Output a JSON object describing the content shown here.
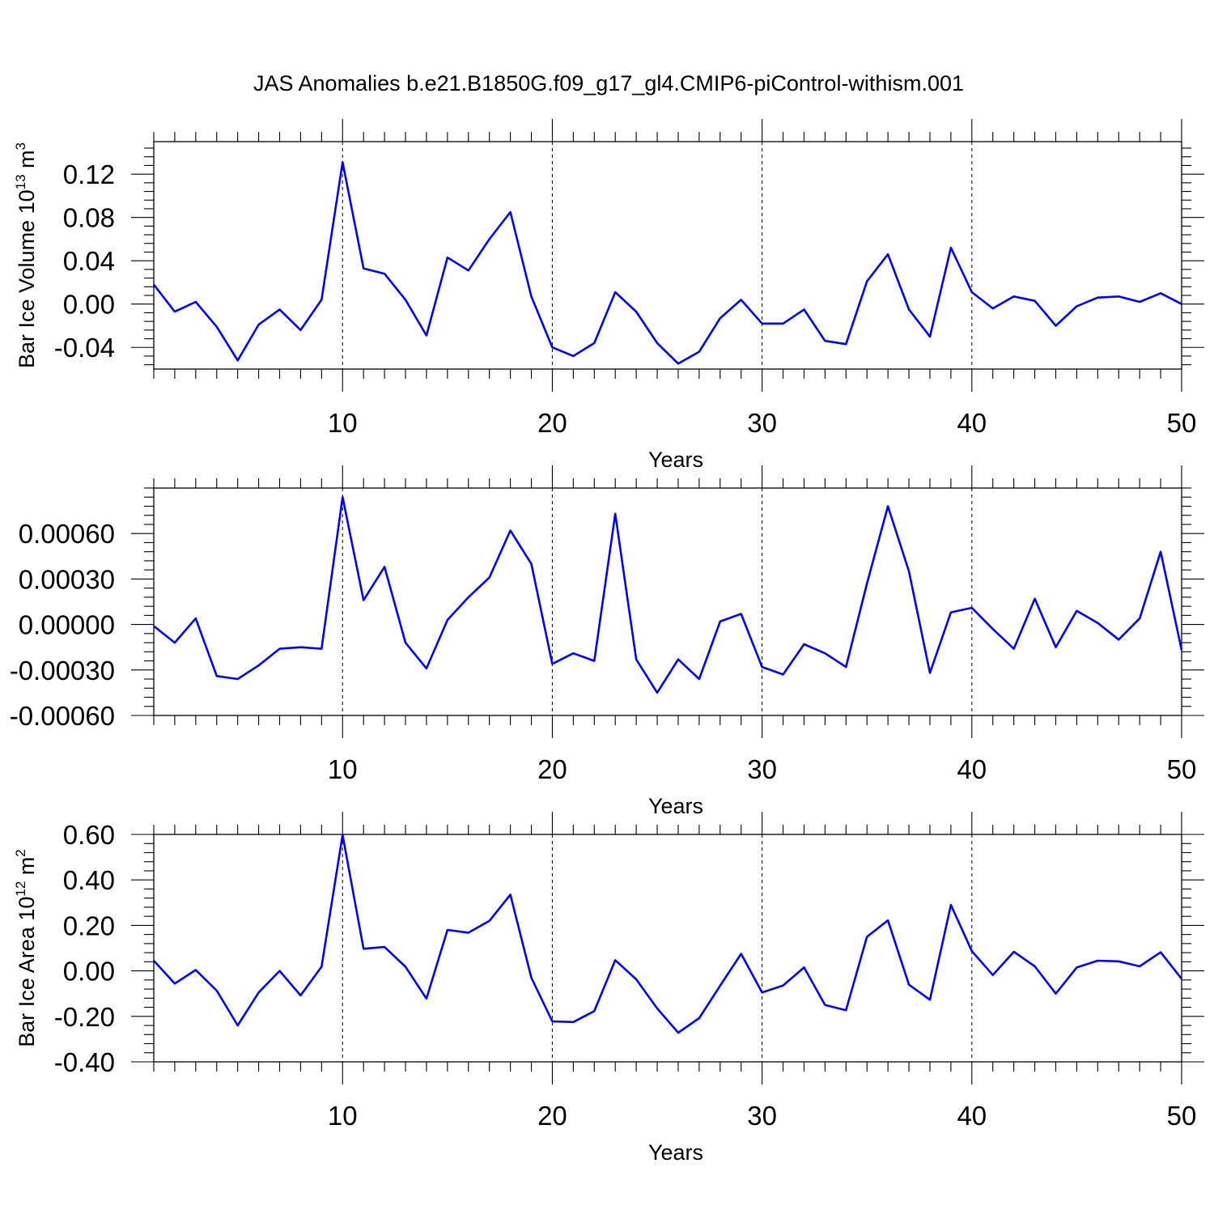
{
  "title": "JAS Anomalies b.e21.B1850G.f09_g17_gl4.CMIP6-piControl-withism.001",
  "colors": {
    "series": "#0000ff",
    "axes": "#000000",
    "background": "#ffffff"
  },
  "chart_data": [
    {
      "type": "line",
      "xlabel": "Years",
      "ylabel_parts": [
        "Bar Ice Volume 10",
        "13",
        " m",
        "3"
      ],
      "xlim": [
        1,
        50
      ],
      "ylim": [
        -0.06,
        0.15
      ],
      "xticks": [
        10,
        20,
        30,
        40,
        50
      ],
      "xtick_labels": [
        "10",
        "20",
        "30",
        "40",
        "50"
      ],
      "yticks": [
        -0.04,
        0.0,
        0.04,
        0.08,
        0.12
      ],
      "ytick_labels": [
        "-0.04",
        "0.00",
        "0.04",
        "0.08",
        "0.12"
      ],
      "grid": "vertical dashed at major x ticks",
      "x": [
        1,
        2,
        3,
        4,
        5,
        6,
        7,
        8,
        9,
        10,
        11,
        12,
        13,
        14,
        15,
        16,
        17,
        18,
        19,
        20,
        21,
        22,
        23,
        24,
        25,
        26,
        27,
        28,
        29,
        30,
        31,
        32,
        33,
        34,
        35,
        36,
        37,
        38,
        39,
        40,
        41,
        42,
        43,
        44,
        45,
        46,
        47,
        48,
        49,
        50
      ],
      "y": [
        0.018,
        -0.007,
        0.002,
        -0.021,
        -0.052,
        -0.019,
        -0.005,
        -0.024,
        0.004,
        0.131,
        0.033,
        0.028,
        0.004,
        -0.029,
        0.043,
        0.031,
        0.06,
        0.085,
        0.007,
        -0.04,
        -0.048,
        -0.036,
        0.011,
        -0.007,
        -0.036,
        -0.055,
        -0.044,
        -0.013,
        0.004,
        -0.018,
        -0.018,
        -0.005,
        -0.034,
        -0.037,
        0.021,
        0.046,
        -0.005,
        -0.03,
        0.052,
        0.011,
        -0.004,
        0.007,
        0.003,
        -0.02,
        -0.002,
        0.006,
        0.007,
        0.002,
        0.01,
        0.0
      ]
    },
    {
      "type": "line",
      "xlabel": "Years",
      "ylabel_parts": [],
      "xlim": [
        1,
        50
      ],
      "ylim": [
        -0.0006,
        0.0009
      ],
      "xticks": [
        10,
        20,
        30,
        40,
        50
      ],
      "xtick_labels": [
        "10",
        "20",
        "30",
        "40",
        "50"
      ],
      "yticks": [
        -0.0006,
        -0.0003,
        0.0,
        0.0003,
        0.0006
      ],
      "ytick_labels": [
        "-0.00060",
        "-0.00030",
        "0.00000",
        "0.00030",
        "0.00060"
      ],
      "grid": "vertical dashed at major x ticks",
      "x": [
        1,
        2,
        3,
        4,
        5,
        6,
        7,
        8,
        9,
        10,
        11,
        12,
        13,
        14,
        15,
        16,
        17,
        18,
        19,
        20,
        21,
        22,
        23,
        24,
        25,
        26,
        27,
        28,
        29,
        30,
        31,
        32,
        33,
        34,
        35,
        36,
        37,
        38,
        39,
        40,
        41,
        42,
        43,
        44,
        45,
        46,
        47,
        48,
        49,
        50
      ],
      "y": [
        -1e-05,
        -0.00012,
        4e-05,
        -0.00034,
        -0.00036,
        -0.00027,
        -0.00016,
        -0.00015,
        -0.00016,
        0.00084,
        0.00016,
        0.00038,
        -0.00012,
        -0.00029,
        3e-05,
        0.00018,
        0.00031,
        0.00062,
        0.0004,
        -0.00026,
        -0.00019,
        -0.00024,
        0.00073,
        -0.00023,
        -0.00045,
        -0.00023,
        -0.00036,
        2e-05,
        7e-05,
        -0.00028,
        -0.00033,
        -0.00013,
        -0.00019,
        -0.00028,
        0.00027,
        0.00078,
        0.00035,
        -0.00032,
        8e-05,
        0.00011,
        -3e-05,
        -0.00016,
        0.00017,
        -0.00015,
        9e-05,
        1e-05,
        -0.0001,
        4e-05,
        0.00048,
        -0.00017
      ]
    },
    {
      "type": "line",
      "xlabel": "Years",
      "ylabel_parts": [
        "Bar Ice Area 10",
        "12",
        " m",
        "2"
      ],
      "xlim": [
        1,
        50
      ],
      "ylim": [
        -0.4,
        0.6
      ],
      "xticks": [
        10,
        20,
        30,
        40,
        50
      ],
      "xtick_labels": [
        "10",
        "20",
        "30",
        "40",
        "50"
      ],
      "yticks": [
        -0.4,
        -0.2,
        0.0,
        0.2,
        0.4,
        0.6
      ],
      "ytick_labels": [
        "-0.40",
        "-0.20",
        "0.00",
        "0.20",
        "0.40",
        "0.60"
      ],
      "grid": "vertical dashed at major x ticks",
      "x": [
        1,
        2,
        3,
        4,
        5,
        6,
        7,
        8,
        9,
        10,
        11,
        12,
        13,
        14,
        15,
        16,
        17,
        18,
        19,
        20,
        21,
        22,
        23,
        24,
        25,
        26,
        27,
        28,
        29,
        30,
        31,
        32,
        33,
        34,
        35,
        36,
        37,
        38,
        39,
        40,
        41,
        42,
        43,
        44,
        45,
        46,
        47,
        48,
        49,
        50
      ],
      "y": [
        0.045,
        -0.056,
        0.004,
        -0.087,
        -0.24,
        -0.095,
        0.0,
        -0.108,
        0.018,
        0.598,
        0.097,
        0.105,
        0.018,
        -0.122,
        0.18,
        0.168,
        0.22,
        0.335,
        -0.03,
        -0.222,
        -0.225,
        -0.177,
        0.047,
        -0.037,
        -0.165,
        -0.272,
        -0.208,
        -0.065,
        0.075,
        -0.095,
        -0.064,
        0.015,
        -0.15,
        -0.173,
        0.15,
        0.222,
        -0.061,
        -0.127,
        0.29,
        0.087,
        -0.018,
        0.084,
        0.02,
        -0.1,
        0.015,
        0.045,
        0.042,
        0.02,
        0.082,
        -0.035
      ]
    }
  ]
}
